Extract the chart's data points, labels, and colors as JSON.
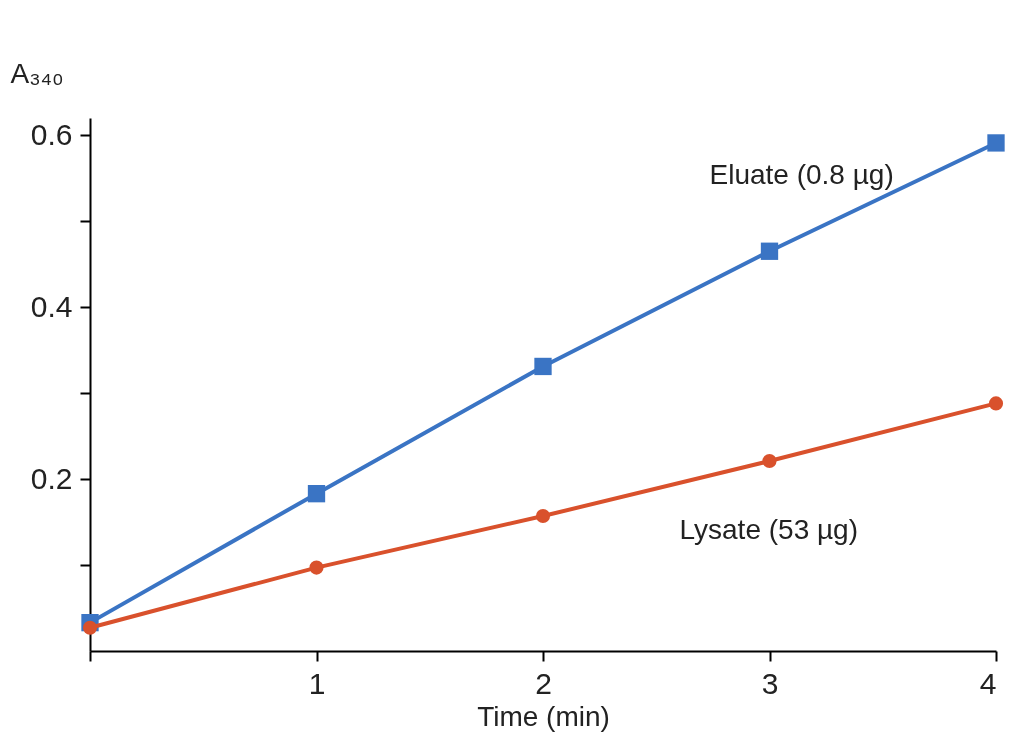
{
  "chart_data": {
    "type": "line",
    "xlabel": "Time (min)",
    "ylabel": "A₃₄₀",
    "x": [
      0,
      1,
      2,
      3,
      4
    ],
    "series": [
      {
        "name": "Eluate (0.8 µg)",
        "color": "#3a74c4",
        "marker": "square",
        "values": [
          0.033,
          0.183,
          0.331,
          0.465,
          0.591
        ]
      },
      {
        "name": "Lysate (53 µg)",
        "color": "#d9512c",
        "marker": "circle",
        "values": [
          0.027,
          0.097,
          0.157,
          0.221,
          0.288
        ]
      }
    ],
    "xlim": [
      0,
      4
    ],
    "xticks": [
      {
        "value": 0,
        "label": null
      },
      1,
      2,
      3,
      4
    ],
    "ylim": [
      0,
      0.62
    ],
    "yticks": [
      {
        "value": 0.1,
        "label": null
      },
      0.2,
      {
        "value": 0.3,
        "label": null
      },
      0.4,
      {
        "value": 0.5,
        "label": null
      },
      0.6
    ],
    "grid": false,
    "legend": false,
    "line_style": "solid"
  }
}
